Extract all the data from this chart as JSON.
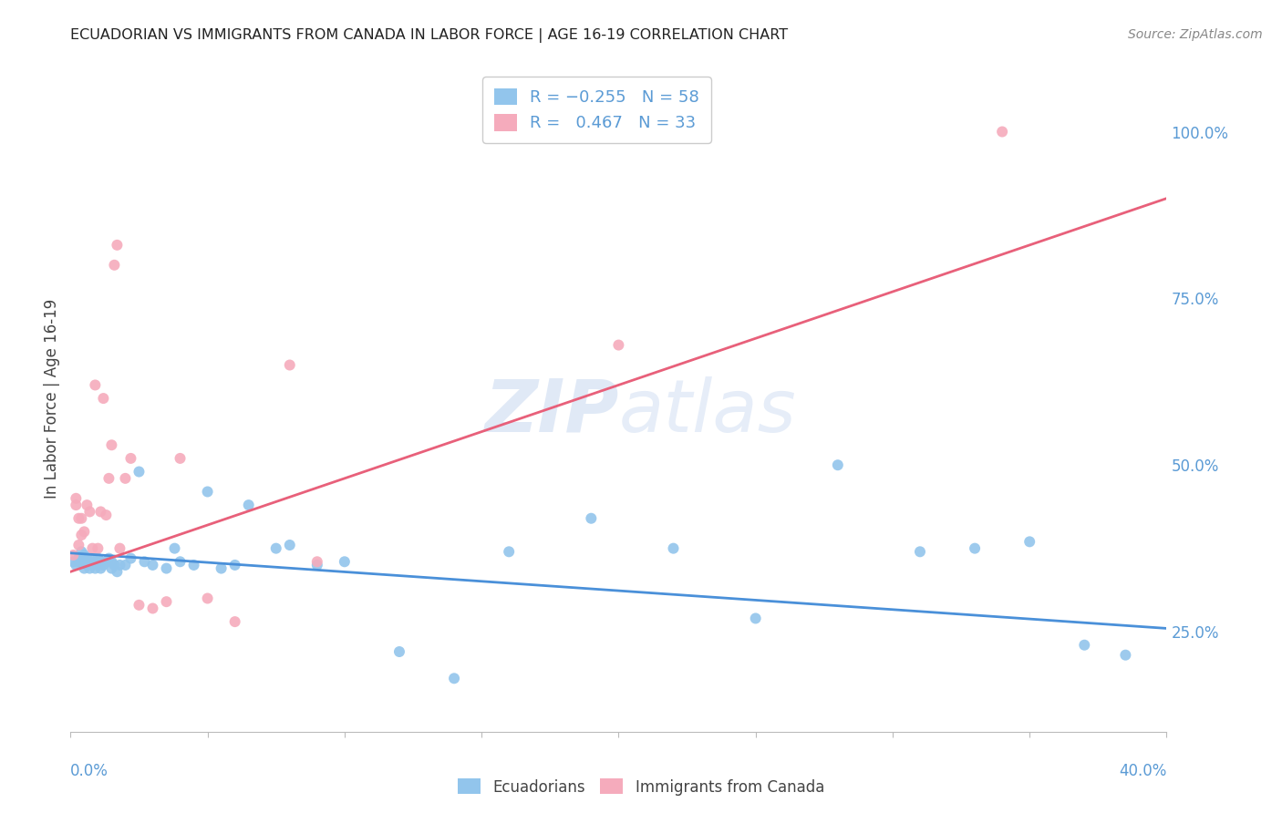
{
  "title": "ECUADORIAN VS IMMIGRANTS FROM CANADA IN LABOR FORCE | AGE 16-19 CORRELATION CHART",
  "source": "Source: ZipAtlas.com",
  "ylabel": "In Labor Force | Age 16-19",
  "ylabel_right_ticks": [
    "25.0%",
    "50.0%",
    "75.0%",
    "100.0%"
  ],
  "ylabel_right_vals": [
    0.25,
    0.5,
    0.75,
    1.0
  ],
  "xlim": [
    0.0,
    0.4
  ],
  "ylim": [
    0.1,
    1.1
  ],
  "blue_color": "#92C5EC",
  "pink_color": "#F5ABBC",
  "blue_line_color": "#4A90D9",
  "pink_line_color": "#E8607A",
  "watermark_zip": "ZIP",
  "watermark_atlas": "atlas",
  "blue_scatter_x": [
    0.001,
    0.002,
    0.003,
    0.003,
    0.004,
    0.004,
    0.005,
    0.005,
    0.005,
    0.006,
    0.006,
    0.007,
    0.007,
    0.008,
    0.008,
    0.009,
    0.009,
    0.01,
    0.01,
    0.011,
    0.011,
    0.012,
    0.013,
    0.014,
    0.015,
    0.015,
    0.016,
    0.017,
    0.018,
    0.02,
    0.022,
    0.025,
    0.027,
    0.03,
    0.035,
    0.038,
    0.04,
    0.05,
    0.065,
    0.08,
    0.09,
    0.1,
    0.12,
    0.14,
    0.16,
    0.19,
    0.22,
    0.25,
    0.28,
    0.31,
    0.33,
    0.35,
    0.37,
    0.385,
    0.06,
    0.075,
    0.045,
    0.055
  ],
  "blue_scatter_y": [
    0.355,
    0.35,
    0.355,
    0.36,
    0.355,
    0.37,
    0.345,
    0.355,
    0.365,
    0.35,
    0.36,
    0.345,
    0.355,
    0.35,
    0.36,
    0.345,
    0.355,
    0.35,
    0.36,
    0.345,
    0.355,
    0.35,
    0.355,
    0.36,
    0.345,
    0.355,
    0.35,
    0.34,
    0.35,
    0.35,
    0.36,
    0.49,
    0.355,
    0.35,
    0.345,
    0.375,
    0.355,
    0.46,
    0.44,
    0.38,
    0.35,
    0.355,
    0.22,
    0.18,
    0.37,
    0.42,
    0.375,
    0.27,
    0.5,
    0.37,
    0.375,
    0.385,
    0.23,
    0.215,
    0.35,
    0.375,
    0.35,
    0.345
  ],
  "pink_scatter_x": [
    0.001,
    0.002,
    0.002,
    0.003,
    0.003,
    0.004,
    0.004,
    0.005,
    0.006,
    0.007,
    0.008,
    0.009,
    0.01,
    0.011,
    0.012,
    0.013,
    0.014,
    0.015,
    0.016,
    0.017,
    0.018,
    0.02,
    0.022,
    0.025,
    0.03,
    0.035,
    0.04,
    0.05,
    0.06,
    0.08,
    0.09,
    0.2,
    0.34
  ],
  "pink_scatter_y": [
    0.365,
    0.44,
    0.45,
    0.38,
    0.42,
    0.395,
    0.42,
    0.4,
    0.44,
    0.43,
    0.375,
    0.62,
    0.375,
    0.43,
    0.6,
    0.425,
    0.48,
    0.53,
    0.8,
    0.83,
    0.375,
    0.48,
    0.51,
    0.29,
    0.285,
    0.295,
    0.51,
    0.3,
    0.265,
    0.65,
    0.355,
    0.68,
    1.0
  ],
  "blue_line_x0": 0.0,
  "blue_line_x1": 0.4,
  "blue_line_y0": 0.368,
  "blue_line_y1": 0.255,
  "pink_line_x0": 0.0,
  "pink_line_x1": 0.4,
  "pink_line_y0": 0.34,
  "pink_line_y1": 0.9
}
